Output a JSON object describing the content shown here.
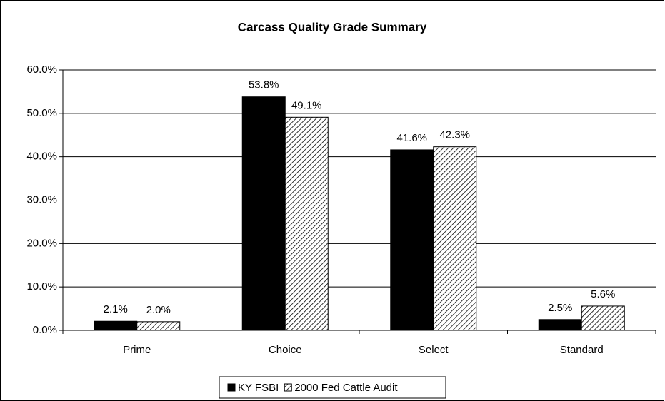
{
  "chart_data": {
    "type": "bar",
    "title": "Carcass Quality Grade Summary",
    "categories": [
      "Prime",
      "Choice",
      "Select",
      "Standard"
    ],
    "series": [
      {
        "name": "KY FSBI",
        "color": "#000000",
        "pattern": "solid",
        "values": [
          2.1,
          53.8,
          41.6,
          2.5
        ],
        "value_labels": [
          "2.1%",
          "53.8%",
          "41.6%",
          "2.5%"
        ]
      },
      {
        "name": "2000 Fed Cattle Audit",
        "color": "#000000",
        "pattern": "hatch",
        "values": [
          2.0,
          49.1,
          42.3,
          5.6
        ],
        "value_labels": [
          "2.0%",
          "49.1%",
          "42.3%",
          "5.6%"
        ]
      }
    ],
    "ylim": [
      0,
      60
    ],
    "yticks": [
      {
        "value": 0,
        "label": "0.0%"
      },
      {
        "value": 10,
        "label": "10.0%"
      },
      {
        "value": 20,
        "label": "20.0%"
      },
      {
        "value": 30,
        "label": "30.0%"
      },
      {
        "value": 40,
        "label": "40.0%"
      },
      {
        "value": 50,
        "label": "50.0%"
      },
      {
        "value": 60,
        "label": "60.0%"
      }
    ],
    "grid": true,
    "legend": "bottom"
  }
}
